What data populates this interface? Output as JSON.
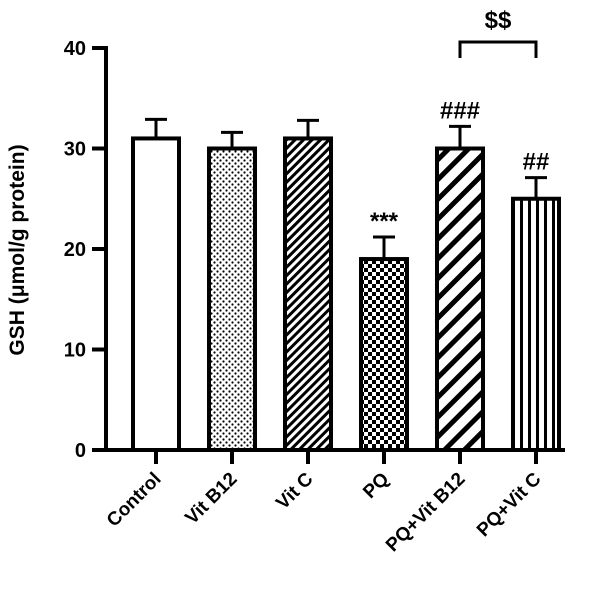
{
  "chart_data": {
    "type": "bar",
    "ylabel": "GSH (μmol/g protein)",
    "xlabel": "",
    "ylim": [
      0,
      40
    ],
    "yticks": [
      0,
      10,
      20,
      30,
      40
    ],
    "grid": false,
    "categories": [
      "Control",
      "Vit B12",
      "Vit C",
      "PQ",
      "PQ+Vit B12",
      "PQ+Vit C"
    ],
    "values": [
      31,
      30,
      31,
      19,
      30,
      25
    ],
    "errors": [
      1.9,
      1.6,
      1.8,
      2.2,
      2.2,
      2.1
    ],
    "patterns": [
      "open",
      "dots",
      "dense-hatch",
      "checker",
      "diagonal-hatch",
      "vertical-lines"
    ],
    "annotations": [
      {
        "category": "PQ",
        "text": "***"
      },
      {
        "category": "PQ+Vit B12",
        "text": "###"
      },
      {
        "category": "PQ+Vit C",
        "text": "##"
      }
    ],
    "comparisons": [
      {
        "from": "PQ+Vit B12",
        "to": "PQ+Vit C",
        "text": "$$"
      }
    ]
  }
}
